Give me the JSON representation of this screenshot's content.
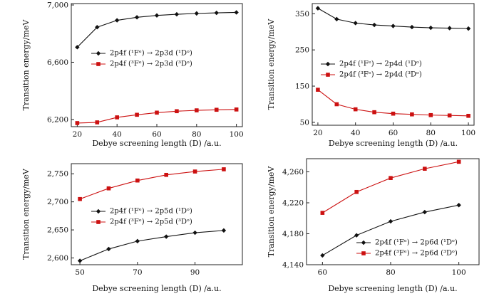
{
  "colors": {
    "black_series": "#111111",
    "red_series": "#cc1111",
    "axis": "#222222"
  },
  "chart_data": [
    {
      "type": "line",
      "xlabel": "Debye screening length (D) /a.u.",
      "ylabel": "Transition energy/meV",
      "xlim": [
        17,
        103
      ],
      "ylim": [
        6150,
        7010
      ],
      "xticks": [
        20,
        40,
        60,
        80,
        100
      ],
      "xtick_labels": [
        "20",
        "40",
        "60",
        "80",
        "100"
      ],
      "yticks": [
        6200,
        6600,
        7000
      ],
      "ytick_labels": [
        "6,200",
        "6,600",
        "7,000"
      ],
      "grid": false,
      "legend_position": "center-right",
      "x": [
        20,
        30,
        40,
        50,
        60,
        70,
        80,
        90,
        100
      ],
      "series": [
        {
          "name": "2p4f (¹Fᵉ) → 2p3d (¹Dᵒ)",
          "marker": "diamond",
          "color": "#111111",
          "values": [
            6705,
            6845,
            6893,
            6914,
            6927,
            6935,
            6941,
            6945,
            6948
          ]
        },
        {
          "name": "2p4f (³Fᵉ) → 2p3d (³Dᵒ)",
          "marker": "square",
          "color": "#cc1111",
          "values": [
            6175,
            6180,
            6215,
            6233,
            6248,
            6258,
            6264,
            6268,
            6270
          ]
        }
      ]
    },
    {
      "type": "line",
      "xlabel": "Debye screening length (D) /a.u.",
      "ylabel": "Transition energy/meV",
      "xlim": [
        17,
        103
      ],
      "ylim": [
        42,
        378
      ],
      "xticks": [
        20,
        40,
        60,
        80,
        100
      ],
      "xtick_labels": [
        "20",
        "40",
        "60",
        "80",
        "100"
      ],
      "yticks": [
        50,
        150,
        250,
        350
      ],
      "ytick_labels": [
        "50",
        "150",
        "250",
        "350"
      ],
      "grid": false,
      "legend_position": "center-right",
      "x": [
        20,
        30,
        40,
        50,
        60,
        70,
        80,
        90,
        100
      ],
      "series": [
        {
          "name": "2p4f (¹Fᵉ) → 2p4d (¹Dᵒ)",
          "marker": "diamond",
          "color": "#111111",
          "values": [
            365,
            335,
            324,
            319,
            316,
            313,
            311,
            310,
            309
          ]
        },
        {
          "name": "2p4f (³Fᵉ) → 2p4d (³Dᵒ)",
          "marker": "square",
          "color": "#cc1111",
          "values": [
            140,
            100,
            86,
            78,
            74,
            72,
            70,
            69,
            68
          ]
        }
      ]
    },
    {
      "type": "line",
      "xlabel": "Debye screening length (D) /a.u.",
      "ylabel": "Transition energy/meV",
      "xlim": [
        47,
        102
      ],
      "ylim": [
        2588,
        2768
      ],
      "xticks": [
        50,
        70,
        90
      ],
      "xtick_labels": [
        "50",
        "70",
        "90"
      ],
      "yticks": [
        2600,
        2650,
        2700,
        2750
      ],
      "ytick_labels": [
        "2,600",
        "2,650",
        "2,700",
        "2,750"
      ],
      "grid": false,
      "legend_position": "center-right",
      "x": [
        50,
        60,
        70,
        80,
        90,
        100
      ],
      "series": [
        {
          "name": "2p4f (¹Fᵉ) → 2p5d (¹Dᵒ)",
          "marker": "diamond",
          "color": "#111111",
          "values": [
            2595,
            2616,
            2630,
            2638,
            2645,
            2649
          ]
        },
        {
          "name": "2p4f (³Fᵉ) → 2p5d (³Dᵒ)",
          "marker": "square",
          "color": "#cc1111",
          "values": [
            2705,
            2724,
            2738,
            2748,
            2754,
            2758
          ]
        }
      ]
    },
    {
      "type": "line",
      "xlabel": "Debye screening length (D) /a.u.",
      "ylabel": "Transition energy/meV",
      "xlim": [
        57,
        103
      ],
      "ylim": [
        4140,
        4277
      ],
      "xticks": [
        60,
        80,
        100
      ],
      "xtick_labels": [
        "60",
        "80",
        "100"
      ],
      "yticks": [
        4140,
        4180,
        4220,
        4260
      ],
      "ytick_labels": [
        "4,140",
        "4,180",
        "4,220",
        "4,260"
      ],
      "grid": false,
      "legend_position": "bottom-right",
      "x": [
        60,
        70,
        80,
        90,
        100
      ],
      "series": [
        {
          "name": "2p4f (¹Fᵉ) → 2p6d (¹Dᵒ)",
          "marker": "diamond",
          "color": "#111111",
          "values": [
            4152,
            4178,
            4196,
            4208,
            4217
          ]
        },
        {
          "name": "2p4f (³Fᵉ) → 2p6d (³Dᵒ)",
          "marker": "square",
          "color": "#cc1111",
          "values": [
            4207,
            4234,
            4252,
            4264,
            4273
          ]
        }
      ]
    }
  ]
}
